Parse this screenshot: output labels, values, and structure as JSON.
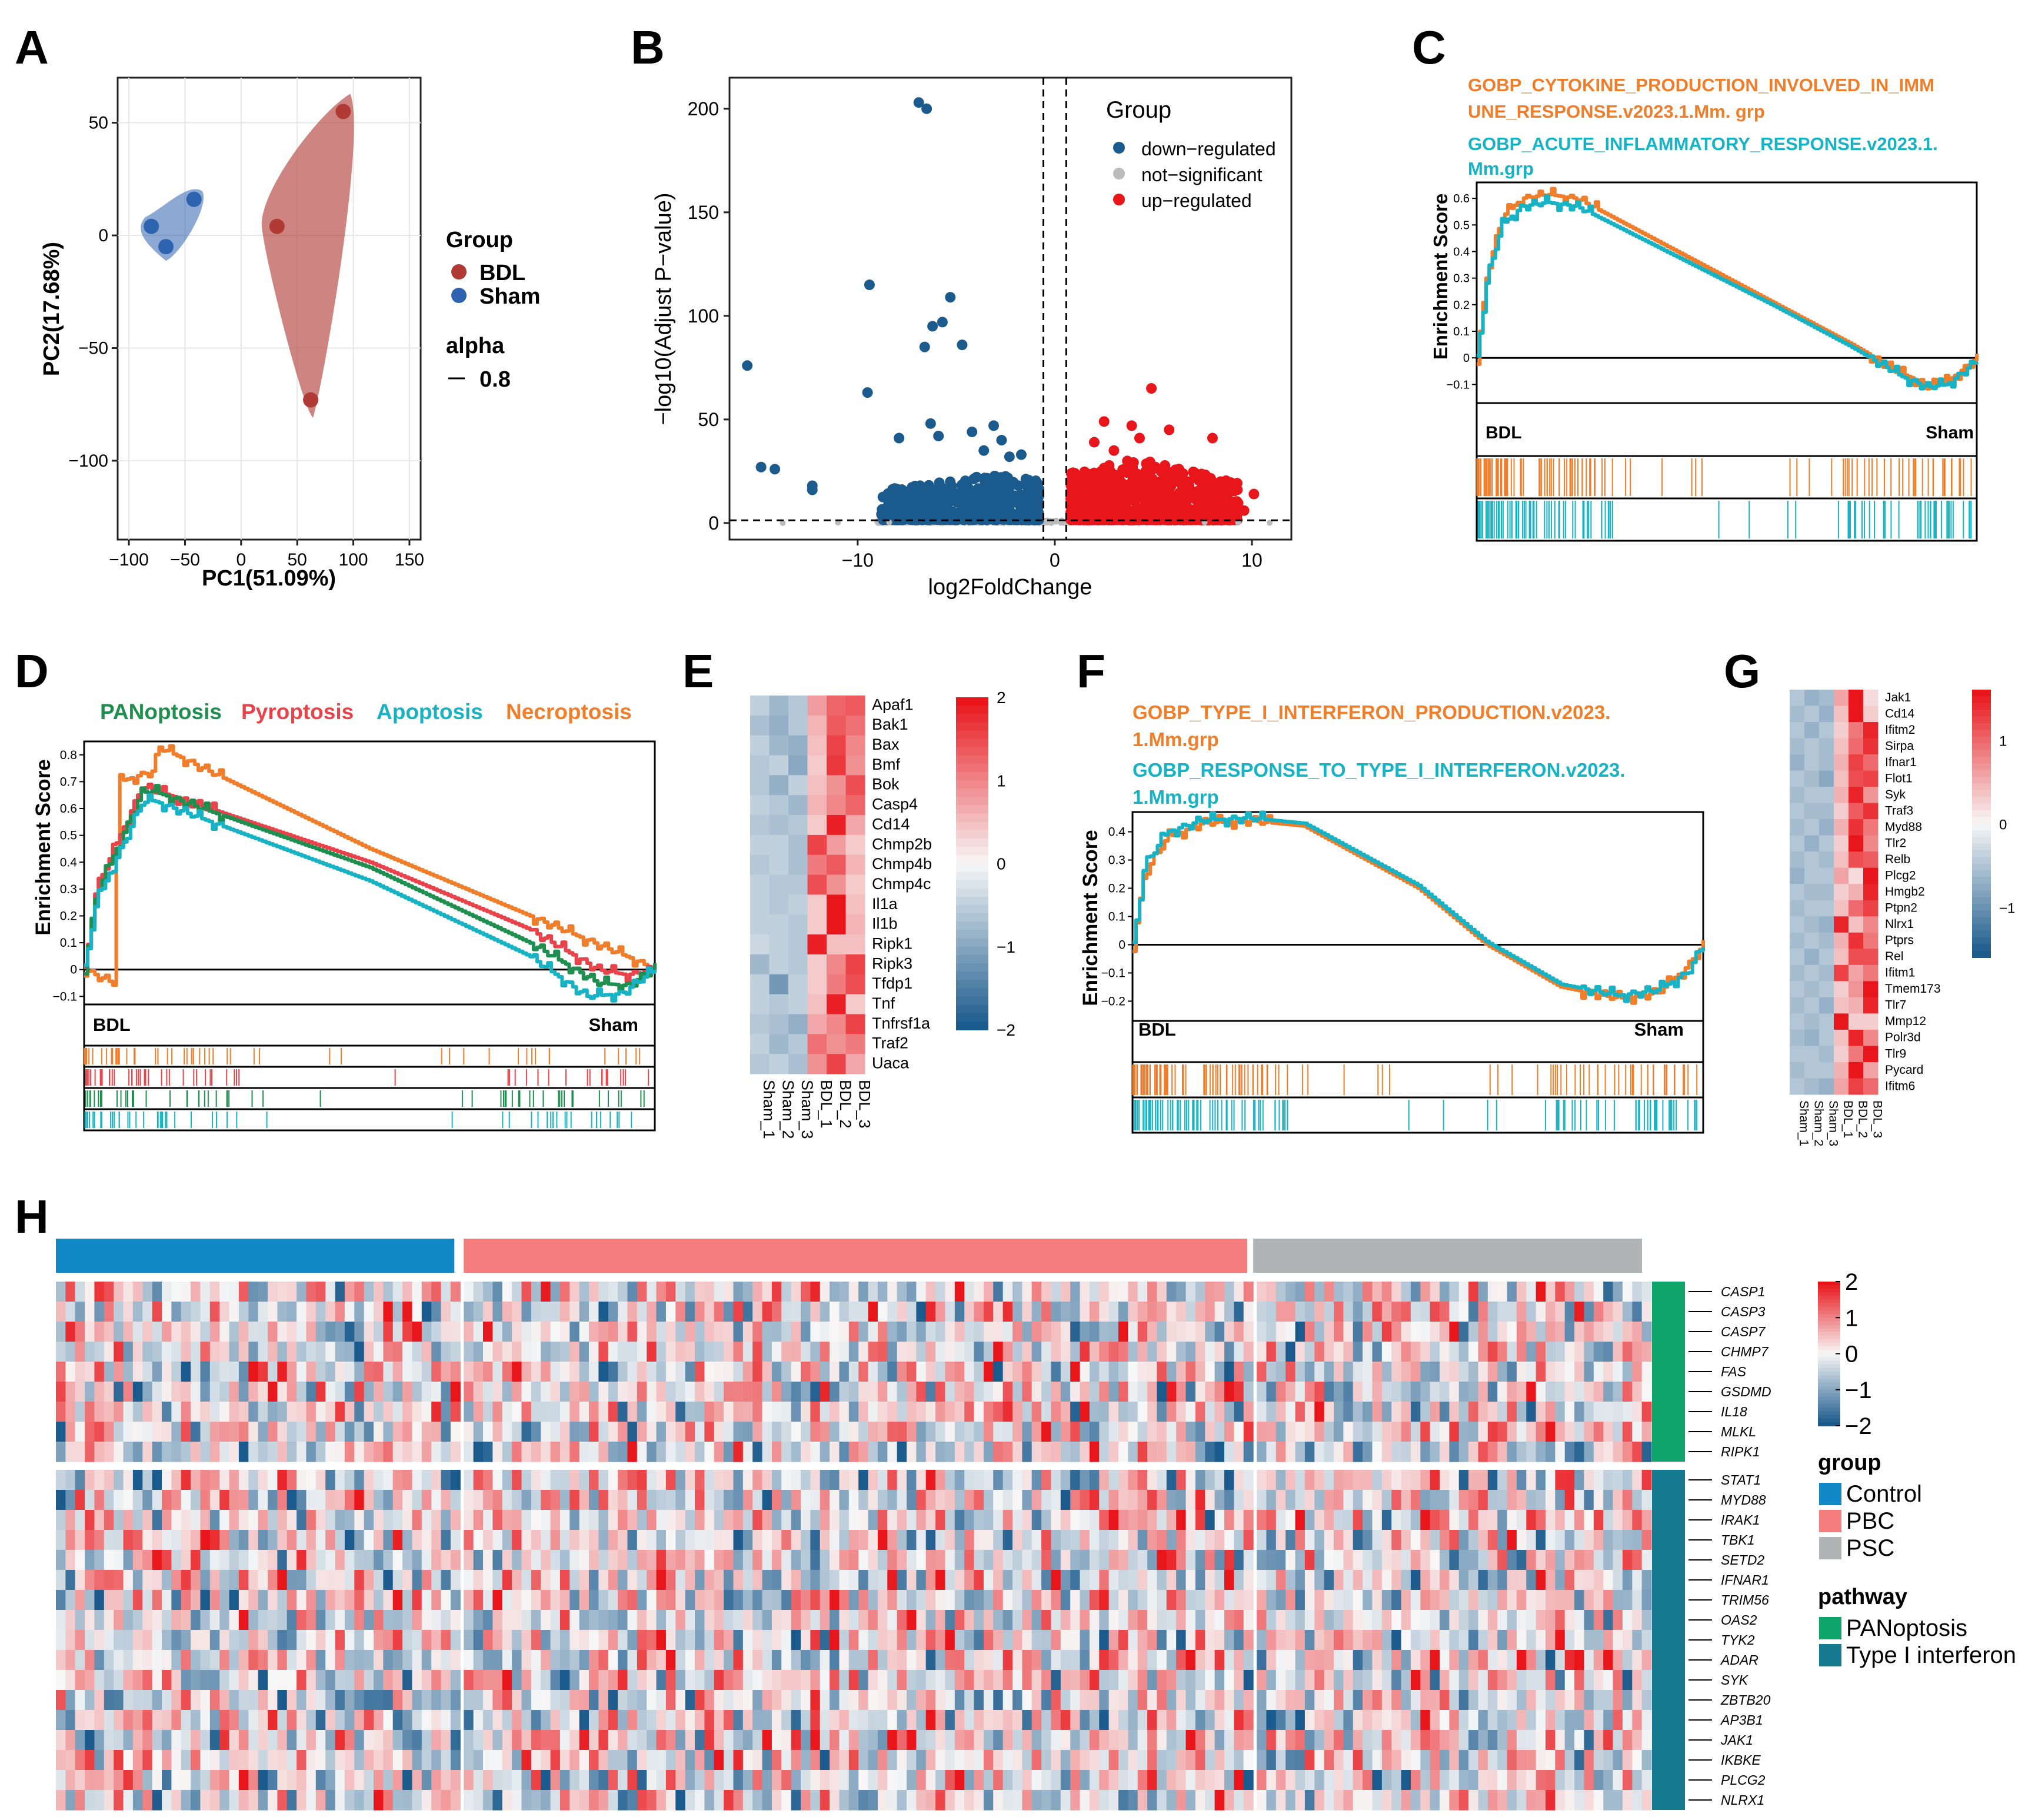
{
  "panel_labels": [
    "A",
    "B",
    "C",
    "D",
    "E",
    "F",
    "G",
    "H"
  ],
  "colors": {
    "bdl": "#B03A34",
    "sham": "#2E63B0",
    "down": "#1B5A8C",
    "up": "#E8161B",
    "ns": "#BBBBBB",
    "orange": "#EF7D2A",
    "teal": "#17B3C4",
    "green": "#1E8F4E",
    "red": "#E8424A",
    "control": "#1287C6",
    "pbc": "#F47D7D",
    "psc": "#B0B4B5",
    "panoptosis": "#0FA46A",
    "type1ifn": "#157A90"
  },
  "chart_data": [
    {
      "panel": "A",
      "type": "scatter",
      "xlabel": "PC1(51.09%)",
      "ylabel": "PC2(17.68%)",
      "xlim": [
        -110,
        160
      ],
      "ylim": [
        -135,
        70
      ],
      "xticks": [
        "−100",
        "−50",
        "0",
        "50",
        "100",
        "150"
      ],
      "yticks": [
        "50",
        "0",
        "−50",
        "−100"
      ],
      "legend_title": "Group",
      "legend_alpha_title": "alpha",
      "legend_alpha_value": "0.8",
      "series": [
        {
          "name": "BDL",
          "points": [
            [
              91,
              55
            ],
            [
              32,
              4
            ],
            [
              62,
              -73
            ]
          ]
        },
        {
          "name": "Sham",
          "points": [
            [
              -42,
              16
            ],
            [
              -80,
              4
            ],
            [
              -67,
              -5
            ]
          ]
        }
      ]
    },
    {
      "panel": "B",
      "type": "scatter",
      "xlabel": "log2FoldChange",
      "ylabel": "−log10(Adjust P−value)",
      "xlim": [
        -16.5,
        12
      ],
      "ylim": [
        -8,
        215
      ],
      "xticks": [
        "−10",
        "0",
        "10"
      ],
      "yticks": [
        "200",
        "150",
        "100",
        "50",
        "0"
      ],
      "vlines": [
        -0.58,
        0.58
      ],
      "hline": 1.3,
      "legend_title": "Group",
      "series": [
        {
          "name": "down−regulated",
          "points": [
            [
              -6.9,
              203
            ],
            [
              -6.5,
              200
            ],
            [
              -9.4,
              115
            ],
            [
              -5.3,
              109
            ],
            [
              -5.7,
              97
            ],
            [
              -6.2,
              95
            ],
            [
              -6.6,
              85
            ],
            [
              -4.7,
              86
            ],
            [
              -9.5,
              63
            ],
            [
              -15.6,
              76
            ],
            [
              -14.9,
              27
            ],
            [
              -14.2,
              26
            ],
            [
              -12.3,
              18
            ],
            [
              -12.3,
              16
            ],
            [
              -6.3,
              48
            ],
            [
              -5.9,
              42
            ],
            [
              -7.9,
              41
            ],
            [
              -3.1,
              47
            ],
            [
              -4.2,
              44
            ],
            [
              -2.7,
              40
            ],
            [
              -3.6,
              35
            ],
            [
              -1.7,
              33
            ],
            [
              -2.3,
              32
            ]
          ]
        },
        {
          "name": "not−significant",
          "points": [
            [
              -13.8,
              0
            ],
            [
              -11,
              0.2
            ],
            [
              -8.4,
              0.3
            ],
            [
              9.3,
              0.2
            ],
            [
              10.9,
              0.1
            ],
            [
              7.6,
              0.4
            ]
          ]
        },
        {
          "name": "up−regulated",
          "points": [
            [
              4.9,
              65
            ],
            [
              3.9,
              47
            ],
            [
              2.5,
              49
            ],
            [
              5.8,
              45
            ],
            [
              2.0,
              39
            ],
            [
              8.0,
              41
            ],
            [
              4.3,
              41
            ],
            [
              3.0,
              35
            ],
            [
              10.1,
              14
            ],
            [
              8.2,
              11
            ],
            [
              9.6,
              6
            ]
          ]
        }
      ]
    },
    {
      "panel": "C",
      "type": "line",
      "title_lines": [
        {
          "text": "GOBP_CYTOKINE_PRODUCTION_INVOLVED_IN_IMM",
          "color": "orange"
        },
        {
          "text": "UNE_RESPONSE.v2023.1.Mm. grp",
          "color": "orange"
        },
        {
          "text": "GOBP_ACUTE_INFLAMMATORY_RESPONSE.v2023.1.",
          "color": "teal"
        },
        {
          "text": "Mm.grp",
          "color": "teal"
        }
      ],
      "ylabel": "Enrichment Score",
      "yticks": [
        "0.6",
        "0.5",
        "0.4",
        "0.3",
        "0.2",
        "0.1",
        "0",
        "−0.1"
      ],
      "ylim": [
        -0.17,
        0.66
      ],
      "left_label": "BDL",
      "right_label": "Sham",
      "series": [
        {
          "name": "CYTOKINE_PRODUCTION",
          "color": "orange",
          "x": [
            0,
            0.02,
            0.05,
            0.09,
            0.14,
            0.2,
            0.4,
            0.6,
            0.75,
            0.85,
            0.9,
            0.94,
            1.0
          ],
          "y": [
            0,
            0.32,
            0.53,
            0.6,
            0.615,
            0.6,
            0.4,
            0.2,
            0.05,
            -0.06,
            -0.1,
            -0.09,
            0
          ]
        },
        {
          "name": "ACUTE_INFLAMMATORY",
          "color": "teal",
          "x": [
            0,
            0.02,
            0.05,
            0.09,
            0.14,
            0.2,
            0.4,
            0.6,
            0.75,
            0.85,
            0.9,
            0.94,
            1.0
          ],
          "y": [
            0,
            0.3,
            0.5,
            0.57,
            0.585,
            0.57,
            0.38,
            0.19,
            0.04,
            -0.07,
            -0.11,
            -0.1,
            -0.01
          ]
        }
      ]
    },
    {
      "panel": "D",
      "type": "line",
      "title_parts": [
        {
          "text": "PANoptosis",
          "color": "green"
        },
        {
          "text": "Pyroptosis",
          "color": "red"
        },
        {
          "text": "Apoptosis",
          "color": "teal"
        },
        {
          "text": "Necroptosis",
          "color": "orange"
        }
      ],
      "ylabel": "Enrichment Score",
      "yticks": [
        "0.8",
        "0.7",
        "0.6",
        "0.5",
        "0.4",
        "0.3",
        "0.2",
        "0.1",
        "0",
        "−0.1"
      ],
      "ylim": [
        -0.13,
        0.85
      ],
      "left_label": "BDL",
      "right_label": "Sham",
      "series": [
        {
          "name": "Necroptosis",
          "color": "orange",
          "x": [
            0,
            0.05,
            0.06,
            0.12,
            0.13,
            0.5,
            0.96,
            1.0
          ],
          "y": [
            0,
            -0.05,
            0.7,
            0.74,
            0.83,
            0.45,
            0.04,
            0
          ]
        },
        {
          "name": "Pyroptosis",
          "color": "red",
          "x": [
            0,
            0.02,
            0.1,
            0.12,
            0.5,
            0.78,
            0.9,
            0.95,
            1.0
          ],
          "y": [
            0,
            0.3,
            0.68,
            0.67,
            0.4,
            0.15,
            0.0,
            -0.02,
            0
          ]
        },
        {
          "name": "PANoptosis",
          "color": "green",
          "x": [
            0,
            0.02,
            0.1,
            0.12,
            0.5,
            0.78,
            0.9,
            0.95,
            1.0
          ],
          "y": [
            0,
            0.28,
            0.66,
            0.665,
            0.38,
            0.1,
            -0.05,
            -0.06,
            0
          ]
        },
        {
          "name": "Apoptosis",
          "color": "teal",
          "x": [
            0,
            0.02,
            0.1,
            0.12,
            0.5,
            0.78,
            0.88,
            0.94,
            1.0
          ],
          "y": [
            0,
            0.25,
            0.62,
            0.63,
            0.33,
            0.05,
            -0.1,
            -0.09,
            0
          ]
        }
      ]
    },
    {
      "panel": "E",
      "type": "heatmap",
      "rows": [
        "Apaf1",
        "Bak1",
        "Bax",
        "Bmf",
        "Bok",
        "Casp4",
        "Cd14",
        "Chmp2b",
        "Chmp4b",
        "Chmp4c",
        "Il1a",
        "Il1b",
        "Ripk1",
        "Ripk3",
        "Tfdp1",
        "Tnf",
        "Tnfrsf1a",
        "Traf2",
        "Uaca"
      ],
      "columns": [
        "Sham_1",
        "Sham_2",
        "Sham_3",
        "BDL_1",
        "BDL_2",
        "BDL_3"
      ],
      "values": [
        [
          -0.5,
          -0.8,
          -0.6,
          0.8,
          1.3,
          1.4
        ],
        [
          -0.7,
          -0.9,
          -0.6,
          0.6,
          1.4,
          1.2
        ],
        [
          -0.5,
          -0.8,
          -0.9,
          0.5,
          1.6,
          1.0
        ],
        [
          -0.6,
          -0.5,
          -1.0,
          0.4,
          1.7,
          0.9
        ],
        [
          -0.6,
          -0.9,
          -0.5,
          0.5,
          0.9,
          1.5
        ],
        [
          -0.5,
          -0.6,
          -0.8,
          0.6,
          1.0,
          1.3
        ],
        [
          -0.6,
          -0.7,
          -0.6,
          0.4,
          1.9,
          0.7
        ],
        [
          -0.5,
          -0.5,
          -0.7,
          1.6,
          0.8,
          0.4
        ],
        [
          -0.6,
          -0.5,
          -0.7,
          1.1,
          1.4,
          0.6
        ],
        [
          -0.5,
          -0.6,
          -0.6,
          1.5,
          0.9,
          0.4
        ],
        [
          -0.5,
          -0.6,
          -0.5,
          0.4,
          2.0,
          0.5
        ],
        [
          -0.5,
          -0.5,
          -0.6,
          0.4,
          2.0,
          0.6
        ],
        [
          -0.4,
          -0.5,
          -0.6,
          1.9,
          0.5,
          0.5
        ],
        [
          -0.8,
          -0.5,
          -0.6,
          0.4,
          1.0,
          1.6
        ],
        [
          -0.5,
          -1.2,
          -0.5,
          0.4,
          1.1,
          1.5
        ],
        [
          -0.5,
          -0.6,
          -0.5,
          0.5,
          1.9,
          0.4
        ],
        [
          -0.6,
          -0.7,
          -0.9,
          0.7,
          1.0,
          1.6
        ],
        [
          -0.5,
          -0.8,
          -0.6,
          1.2,
          0.9,
          1.1
        ],
        [
          -0.6,
          -0.5,
          -0.7,
          0.9,
          1.6,
          0.7
        ]
      ],
      "legend_ticks": [
        "2",
        "1",
        "0",
        "−1",
        "−2"
      ],
      "range": [
        -2,
        2
      ]
    },
    {
      "panel": "F",
      "type": "line",
      "title_lines": [
        {
          "text": "GOBP_TYPE_I_INTERFERON_PRODUCTION.v2023.",
          "color": "orange"
        },
        {
          "text": "1.Mm.grp",
          "color": "orange"
        },
        {
          "text": "GOBP_RESPONSE_TO_TYPE_I_INTERFERON.v2023.",
          "color": "teal"
        },
        {
          "text": "1.Mm.grp",
          "color": "teal"
        }
      ],
      "ylabel": "Enrichment Score",
      "yticks": [
        "0.4",
        "0.3",
        "0.2",
        "0.1",
        "0",
        "−0.1",
        "−0.2"
      ],
      "ylim": [
        -0.27,
        0.47
      ],
      "left_label": "BDL",
      "right_label": "Sham",
      "series": [
        {
          "name": "TYPE_I_IFN_PRODUCTION",
          "color": "orange",
          "x": [
            0,
            0.02,
            0.06,
            0.12,
            0.2,
            0.3,
            0.5,
            0.62,
            0.75,
            0.85,
            0.92,
            0.97,
            1.0
          ],
          "y": [
            0,
            0.25,
            0.38,
            0.43,
            0.44,
            0.42,
            0.2,
            0.0,
            -0.15,
            -0.19,
            -0.17,
            -0.08,
            0
          ]
        },
        {
          "name": "RESPONSE_TO_TYPE_I_IFN",
          "color": "teal",
          "x": [
            0,
            0.02,
            0.06,
            0.12,
            0.2,
            0.3,
            0.5,
            0.62,
            0.75,
            0.85,
            0.92,
            0.97,
            1.0
          ],
          "y": [
            0,
            0.28,
            0.4,
            0.44,
            0.45,
            0.43,
            0.21,
            0.01,
            -0.14,
            -0.18,
            -0.16,
            -0.1,
            0
          ]
        }
      ]
    },
    {
      "panel": "G",
      "type": "heatmap",
      "rows": [
        "Jak1",
        "Cd14",
        "Ifitm2",
        "Sirpa",
        "Ifnar1",
        "Flot1",
        "Syk",
        "Traf3",
        "Myd88",
        "Tlr2",
        "Relb",
        "Plcg2",
        "Hmgb2",
        "Ptpn2",
        "Nlrx1",
        "Ptprs",
        "Rel",
        "Ifitm1",
        "Tmem173",
        "Tlr7",
        "Mmp12",
        "Polr3d",
        "Tlr9",
        "Pycard",
        "Ifitm6"
      ],
      "columns": [
        "Sham_1",
        "Sham_2",
        "Sham_3",
        "BDL_1",
        "BDL_2",
        "BDL_3"
      ],
      "values": [
        [
          -0.5,
          -0.7,
          -0.6,
          0.6,
          1.6,
          0.2
        ],
        [
          -0.6,
          -0.5,
          -0.7,
          0.4,
          1.8,
          0.3
        ],
        [
          -0.5,
          -0.7,
          -0.5,
          0.3,
          0.9,
          1.5
        ],
        [
          -0.6,
          -0.5,
          -0.6,
          0.4,
          1.0,
          1.4
        ],
        [
          -0.7,
          -0.5,
          -0.6,
          0.5,
          1.3,
          1.0
        ],
        [
          -0.5,
          -0.6,
          -0.8,
          0.4,
          1.2,
          1.3
        ],
        [
          -0.6,
          -0.5,
          -0.5,
          0.5,
          1.5,
          0.7
        ],
        [
          -0.5,
          -0.6,
          -0.6,
          0.3,
          1.1,
          1.4
        ],
        [
          -0.6,
          -0.5,
          -0.7,
          0.5,
          1.4,
          0.9
        ],
        [
          -0.5,
          -0.7,
          -0.5,
          0.3,
          1.6,
          0.8
        ],
        [
          -0.6,
          -0.5,
          -0.6,
          0.4,
          1.2,
          1.1
        ],
        [
          -0.7,
          -0.5,
          -0.5,
          0.6,
          0.2,
          1.6
        ],
        [
          -0.5,
          -0.6,
          -0.6,
          0.3,
          0.5,
          1.5
        ],
        [
          -0.6,
          -0.5,
          -0.5,
          0.4,
          1.0,
          1.3
        ],
        [
          -0.5,
          -0.6,
          -0.7,
          1.5,
          0.4,
          0.8
        ],
        [
          -0.6,
          -0.5,
          -0.6,
          0.5,
          1.4,
          0.9
        ],
        [
          -0.5,
          -0.7,
          -0.5,
          0.4,
          1.2,
          1.2
        ],
        [
          -0.6,
          -0.5,
          -0.6,
          1.3,
          0.6,
          0.9
        ],
        [
          -0.5,
          -0.6,
          -0.5,
          0.3,
          0.7,
          1.6
        ],
        [
          -0.6,
          -0.5,
          -0.7,
          0.4,
          0.5,
          1.5
        ],
        [
          -0.5,
          -0.6,
          -0.5,
          1.7,
          0.3,
          0.3
        ],
        [
          -0.6,
          -0.7,
          -0.5,
          0.4,
          1.5,
          0.8
        ],
        [
          -0.5,
          -0.5,
          -0.6,
          0.3,
          0.9,
          1.6
        ],
        [
          -0.6,
          -0.5,
          -0.5,
          0.5,
          1.6,
          0.6
        ],
        [
          -0.5,
          -0.6,
          -0.7,
          0.6,
          1.3,
          1.0
        ]
      ],
      "legend_ticks": [
        "1",
        "0",
        "−1"
      ],
      "range": [
        -1.6,
        1.6
      ]
    },
    {
      "panel": "H",
      "type": "heatmap",
      "groups": [
        {
          "name": "Control",
          "n": 42
        },
        {
          "name": "PBC",
          "n": 82
        },
        {
          "name": "PSC",
          "n": 41
        }
      ],
      "gene_blocks": [
        {
          "pathway": "PANoptosis",
          "genes": [
            "CASP1",
            "CASP3",
            "CASP7",
            "CHMP7",
            "FAS",
            "GSDMD",
            "IL18",
            "MLKL",
            "RIPK1"
          ]
        },
        {
          "pathway": "Type I interferon",
          "genes": [
            "STAT1",
            "MYD88",
            "IRAK1",
            "TBK1",
            "SETD2",
            "IFNAR1",
            "TRIM56",
            "OAS2",
            "TYK2",
            "ADAR",
            "SYK",
            "ZBTB20",
            "AP3B1",
            "JAK1",
            "IKBKE",
            "PLCG2",
            "NLRX1"
          ]
        }
      ],
      "values_note": "z-scored expression, range −2 to 2, randomly distributed per sample",
      "legend_ticks": [
        "2",
        "1",
        "0",
        "−1",
        "−2"
      ],
      "legend_group_title": "group",
      "legend_pathway_title": "pathway",
      "seed": 17
    }
  ]
}
